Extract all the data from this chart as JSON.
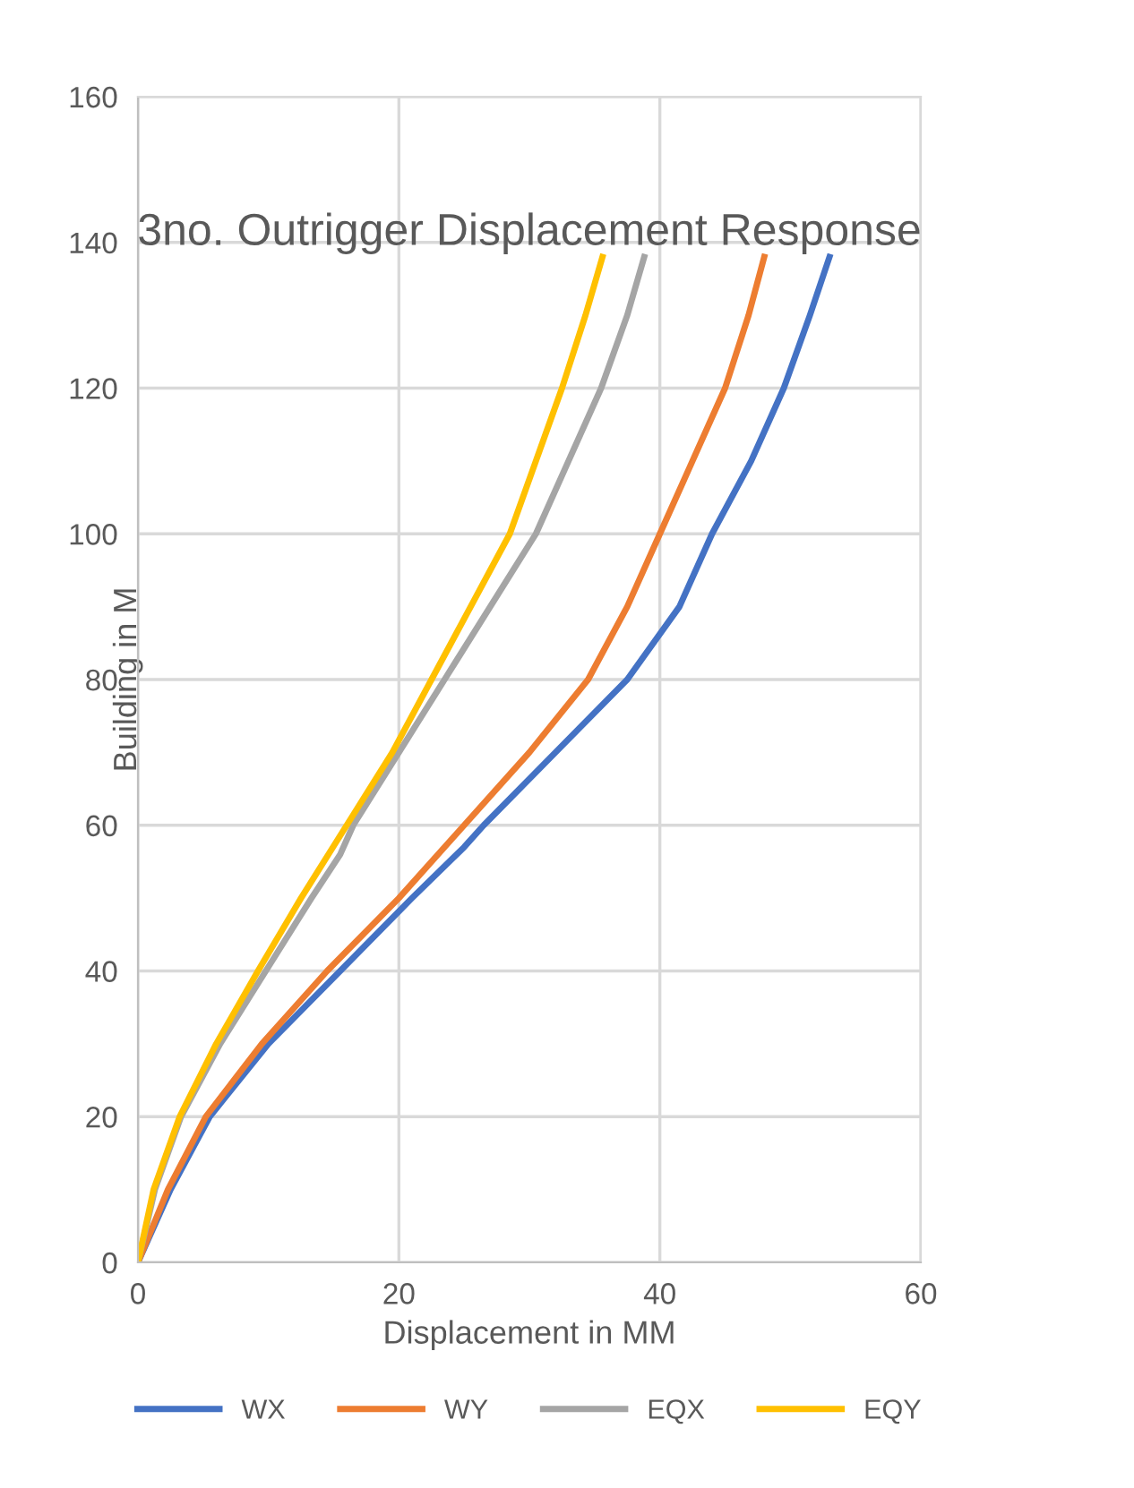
{
  "chart_data": {
    "type": "line",
    "title": "3no. Outrigger Displacement Response",
    "xlabel": "Displacement in MM",
    "ylabel": "Building in M",
    "xlim": [
      0,
      60
    ],
    "ylim": [
      0,
      160
    ],
    "xticks": [
      0,
      20,
      40,
      60
    ],
    "yticks": [
      0,
      20,
      40,
      60,
      80,
      100,
      120,
      140,
      160
    ],
    "grid": true,
    "legend": "bottom",
    "marker": "none",
    "line_style": "solid",
    "series": [
      {
        "name": "WX",
        "color": "#4472c4",
        "x": [
          0,
          2.5,
          5.5,
          10,
          15.5,
          21,
          25,
          26.5,
          32,
          37.5,
          41.5,
          44,
          47,
          49.5,
          51.5,
          53
        ],
        "values": [
          0,
          10,
          20,
          30,
          40,
          50,
          57,
          60,
          70,
          80,
          90,
          100,
          110,
          120,
          130,
          138
        ]
      },
      {
        "name": "WY",
        "color": "#ed7d31",
        "x": [
          0,
          2.3,
          5.2,
          9.5,
          14.5,
          20,
          25,
          30,
          34.5,
          37.5,
          40,
          42.5,
          45,
          46.8,
          48
        ],
        "values": [
          0,
          10,
          20,
          30,
          40,
          50,
          60,
          70,
          80,
          90,
          100,
          110,
          120,
          130,
          138
        ]
      },
      {
        "name": "EQX",
        "color": "#a5a5a5",
        "x": [
          0,
          1.3,
          3.3,
          6.3,
          9.8,
          13.3,
          15.5,
          16.5,
          20,
          23.5,
          27,
          30.5,
          33,
          35.5,
          37.5,
          38.8
        ],
        "values": [
          0,
          10,
          20,
          30,
          40,
          50,
          56,
          60,
          70,
          80,
          90,
          100,
          110,
          120,
          130,
          138
        ]
      },
      {
        "name": "EQY",
        "color": "#ffc000",
        "x": [
          0,
          1.2,
          3.2,
          6,
          9.2,
          12.5,
          16,
          19.5,
          22.5,
          25.5,
          28.5,
          30.5,
          32.5,
          34.3,
          35.6
        ],
        "values": [
          0,
          10,
          20,
          30,
          40,
          50,
          60,
          70,
          80,
          90,
          100,
          110,
          120,
          130,
          138
        ]
      }
    ]
  }
}
